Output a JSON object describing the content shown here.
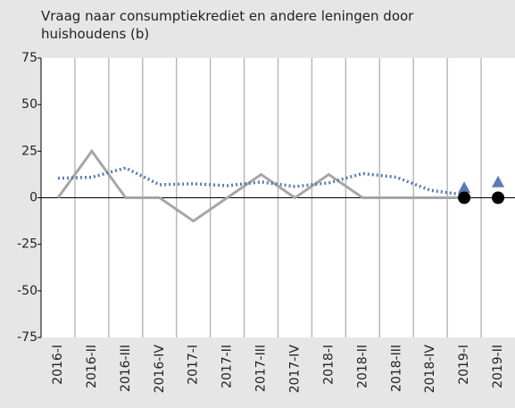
{
  "chart_data": {
    "type": "line",
    "title": "Vraag naar consumptiekrediet en andere leningen door huishoudens (b)",
    "categories": [
      "2016-I",
      "2016-II",
      "2016-III",
      "2016-IV",
      "2017-I",
      "2017-II",
      "2017-III",
      "2017-IV",
      "2018-I",
      "2018-II",
      "2018-III",
      "2018-IV",
      "2019-I",
      "2019-II"
    ],
    "series": [
      {
        "color": "#a6a6a6",
        "style": "solid",
        "values": [
          0,
          25,
          0,
          0,
          -12.5,
          0,
          12.5,
          0,
          12.5,
          0,
          0,
          0,
          0,
          null
        ]
      },
      {
        "color": "#5b7bb4",
        "style": "dotted",
        "values": [
          10.5,
          11,
          16,
          7,
          7.5,
          6.5,
          8.5,
          6,
          8,
          13,
          11,
          4,
          1.5,
          null
        ]
      },
      {
        "color": "#5b7bb4",
        "style": "triangle",
        "values": [
          null,
          null,
          null,
          null,
          null,
          null,
          null,
          null,
          null,
          null,
          null,
          null,
          5,
          8
        ]
      },
      {
        "color": "#000000",
        "style": "circle",
        "values": [
          null,
          null,
          null,
          null,
          null,
          null,
          null,
          null,
          null,
          null,
          null,
          null,
          0,
          0
        ]
      }
    ],
    "ylim": [
      -75,
      75
    ],
    "yticks": [
      -75,
      -50,
      -25,
      0,
      25,
      50,
      75
    ],
    "grid": true
  }
}
